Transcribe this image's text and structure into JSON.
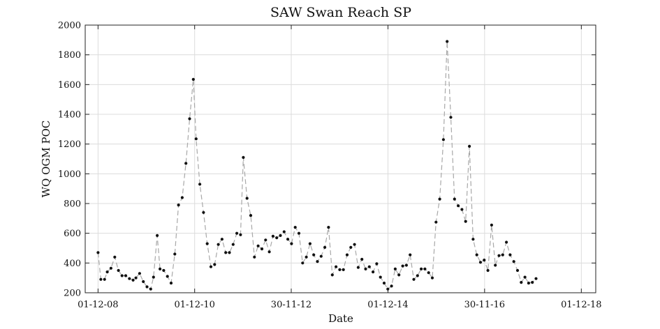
{
  "chart_data": {
    "type": "line",
    "title": "SAW Swan Reach SP",
    "xlabel": "Date",
    "ylabel": "WQ OGM POC",
    "ylim": [
      200,
      2000
    ],
    "yticks": [
      200,
      400,
      600,
      800,
      1000,
      1200,
      1400,
      1600,
      1800,
      2000
    ],
    "xlim": [
      "2008-08-26",
      "2019-03-20"
    ],
    "xticks": [
      {
        "date": "2008-12-01",
        "label": "01-12-08"
      },
      {
        "date": "2010-12-01",
        "label": "01-12-10"
      },
      {
        "date": "2012-11-30",
        "label": "30-11-12"
      },
      {
        "date": "2014-12-01",
        "label": "01-12-14"
      },
      {
        "date": "2016-11-30",
        "label": "30-11-16"
      },
      {
        "date": "2018-12-01",
        "label": "01-12-18"
      }
    ],
    "grid": true,
    "series": [
      {
        "color": "#111111",
        "line_color": "#a8a8a8",
        "points": [
          [
            "2008-12-01",
            470
          ],
          [
            "2008-12-22",
            290
          ],
          [
            "2009-01-19",
            290
          ],
          [
            "2009-02-09",
            340
          ],
          [
            "2009-03-09",
            365
          ],
          [
            "2009-04-06",
            440
          ],
          [
            "2009-05-04",
            350
          ],
          [
            "2009-05-31",
            315
          ],
          [
            "2009-06-28",
            315
          ],
          [
            "2009-07-26",
            295
          ],
          [
            "2009-08-23",
            285
          ],
          [
            "2009-09-13",
            300
          ],
          [
            "2009-10-11",
            330
          ],
          [
            "2009-11-08",
            275
          ],
          [
            "2009-12-06",
            240
          ],
          [
            "2010-01-03",
            225
          ],
          [
            "2010-01-24",
            305
          ],
          [
            "2010-02-21",
            585
          ],
          [
            "2010-03-14",
            360
          ],
          [
            "2010-04-11",
            350
          ],
          [
            "2010-05-09",
            310
          ],
          [
            "2010-06-06",
            265
          ],
          [
            "2010-07-04",
            460
          ],
          [
            "2010-08-01",
            790
          ],
          [
            "2010-08-29",
            840
          ],
          [
            "2010-09-26",
            1070
          ],
          [
            "2010-10-24",
            1370
          ],
          [
            "2010-11-21",
            1635
          ],
          [
            "2010-12-12",
            1235
          ],
          [
            "2011-01-09",
            930
          ],
          [
            "2011-02-06",
            740
          ],
          [
            "2011-03-06",
            530
          ],
          [
            "2011-04-03",
            375
          ],
          [
            "2011-05-01",
            390
          ],
          [
            "2011-05-29",
            525
          ],
          [
            "2011-06-26",
            560
          ],
          [
            "2011-07-24",
            470
          ],
          [
            "2011-08-21",
            470
          ],
          [
            "2011-09-18",
            525
          ],
          [
            "2011-10-16",
            600
          ],
          [
            "2011-11-13",
            590
          ],
          [
            "2011-12-04",
            1110
          ],
          [
            "2012-01-01",
            835
          ],
          [
            "2012-01-29",
            720
          ],
          [
            "2012-02-26",
            440
          ],
          [
            "2012-03-25",
            515
          ],
          [
            "2012-04-22",
            495
          ],
          [
            "2012-05-20",
            555
          ],
          [
            "2012-06-17",
            475
          ],
          [
            "2012-07-15",
            580
          ],
          [
            "2012-08-12",
            570
          ],
          [
            "2012-09-09",
            585
          ],
          [
            "2012-10-07",
            610
          ],
          [
            "2012-11-04",
            560
          ],
          [
            "2012-12-02",
            530
          ],
          [
            "2012-12-30",
            640
          ],
          [
            "2013-01-27",
            600
          ],
          [
            "2013-02-24",
            400
          ],
          [
            "2013-03-24",
            440
          ],
          [
            "2013-04-21",
            530
          ],
          [
            "2013-05-19",
            455
          ],
          [
            "2013-06-16",
            410
          ],
          [
            "2013-07-14",
            445
          ],
          [
            "2013-08-11",
            505
          ],
          [
            "2013-09-08",
            640
          ],
          [
            "2013-10-06",
            320
          ],
          [
            "2013-11-03",
            375
          ],
          [
            "2013-12-01",
            355
          ],
          [
            "2013-12-29",
            355
          ],
          [
            "2014-01-26",
            455
          ],
          [
            "2014-02-23",
            505
          ],
          [
            "2014-03-23",
            525
          ],
          [
            "2014-04-20",
            370
          ],
          [
            "2014-05-18",
            425
          ],
          [
            "2014-06-15",
            360
          ],
          [
            "2014-07-13",
            375
          ],
          [
            "2014-08-10",
            340
          ],
          [
            "2014-09-07",
            395
          ],
          [
            "2014-10-05",
            305
          ],
          [
            "2014-11-02",
            265
          ],
          [
            "2014-11-30",
            225
          ],
          [
            "2014-12-28",
            245
          ],
          [
            "2015-01-25",
            360
          ],
          [
            "2015-02-22",
            320
          ],
          [
            "2015-03-22",
            380
          ],
          [
            "2015-04-19",
            385
          ],
          [
            "2015-05-17",
            455
          ],
          [
            "2015-06-14",
            290
          ],
          [
            "2015-07-12",
            315
          ],
          [
            "2015-08-09",
            360
          ],
          [
            "2015-09-06",
            360
          ],
          [
            "2015-10-04",
            335
          ],
          [
            "2015-11-01",
            300
          ],
          [
            "2015-11-29",
            675
          ],
          [
            "2015-12-27",
            830
          ],
          [
            "2016-01-24",
            1230
          ],
          [
            "2016-02-21",
            1890
          ],
          [
            "2016-03-20",
            1380
          ],
          [
            "2016-04-17",
            830
          ],
          [
            "2016-05-15",
            785
          ],
          [
            "2016-06-12",
            760
          ],
          [
            "2016-07-10",
            680
          ],
          [
            "2016-08-07",
            1185
          ],
          [
            "2016-09-04",
            560
          ],
          [
            "2016-10-02",
            455
          ],
          [
            "2016-10-30",
            405
          ],
          [
            "2016-11-27",
            420
          ],
          [
            "2016-12-25",
            350
          ],
          [
            "2017-01-22",
            655
          ],
          [
            "2017-02-19",
            385
          ],
          [
            "2017-03-19",
            450
          ],
          [
            "2017-04-16",
            455
          ],
          [
            "2017-05-14",
            540
          ],
          [
            "2017-06-11",
            455
          ],
          [
            "2017-07-09",
            410
          ],
          [
            "2017-08-06",
            350
          ],
          [
            "2017-09-03",
            270
          ],
          [
            "2017-10-01",
            305
          ],
          [
            "2017-10-29",
            265
          ],
          [
            "2017-11-26",
            270
          ],
          [
            "2017-12-24",
            295
          ]
        ]
      }
    ]
  }
}
